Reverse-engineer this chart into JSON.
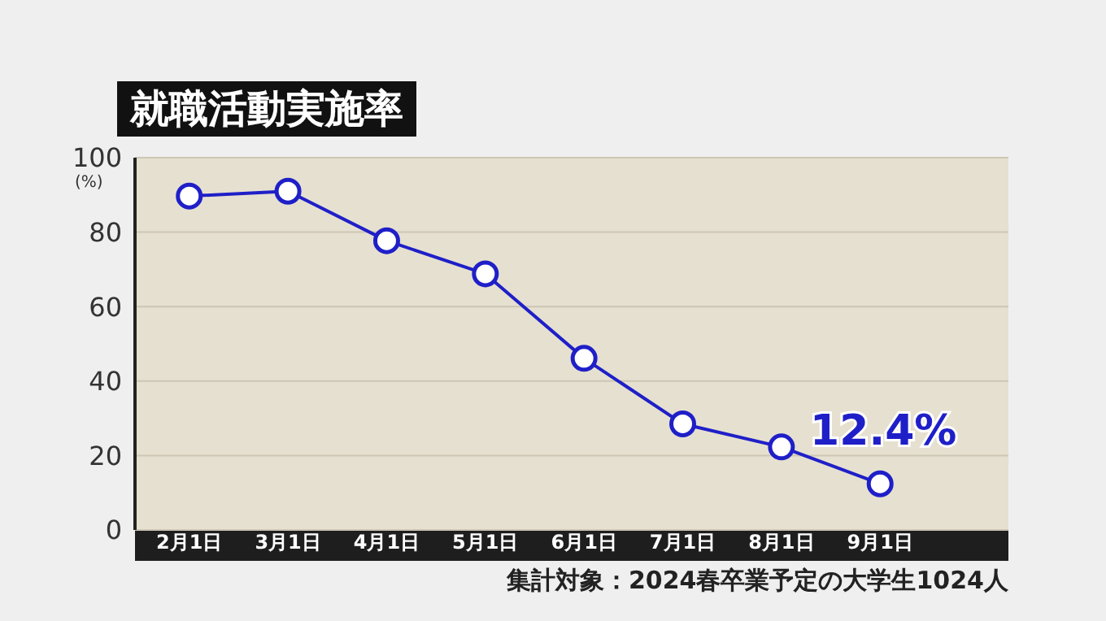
{
  "chart_data": {
    "type": "line",
    "title": "就職活動実施率",
    "ylabel": "(%)",
    "categories": [
      "2月1日",
      "3月1日",
      "4月1日",
      "5月1日",
      "6月1日",
      "7月1日",
      "8月1日",
      "9月1日"
    ],
    "series": [
      {
        "color": "#1f1fc8",
        "values": [
          89.7,
          91.0,
          77.7,
          68.8,
          46.1,
          28.5,
          22.3,
          12.4
        ],
        "value_labels": [
          null,
          null,
          null,
          null,
          null,
          null,
          null,
          "12.4%"
        ]
      }
    ],
    "ylim": [
      0,
      100
    ],
    "yticks": [
      0,
      20,
      40,
      60,
      80,
      100
    ],
    "grid": "y",
    "marker": "circle",
    "line_style": "solid",
    "annotations": [
      "集計対象：2024春卒業予定の大学生1024人"
    ]
  }
}
